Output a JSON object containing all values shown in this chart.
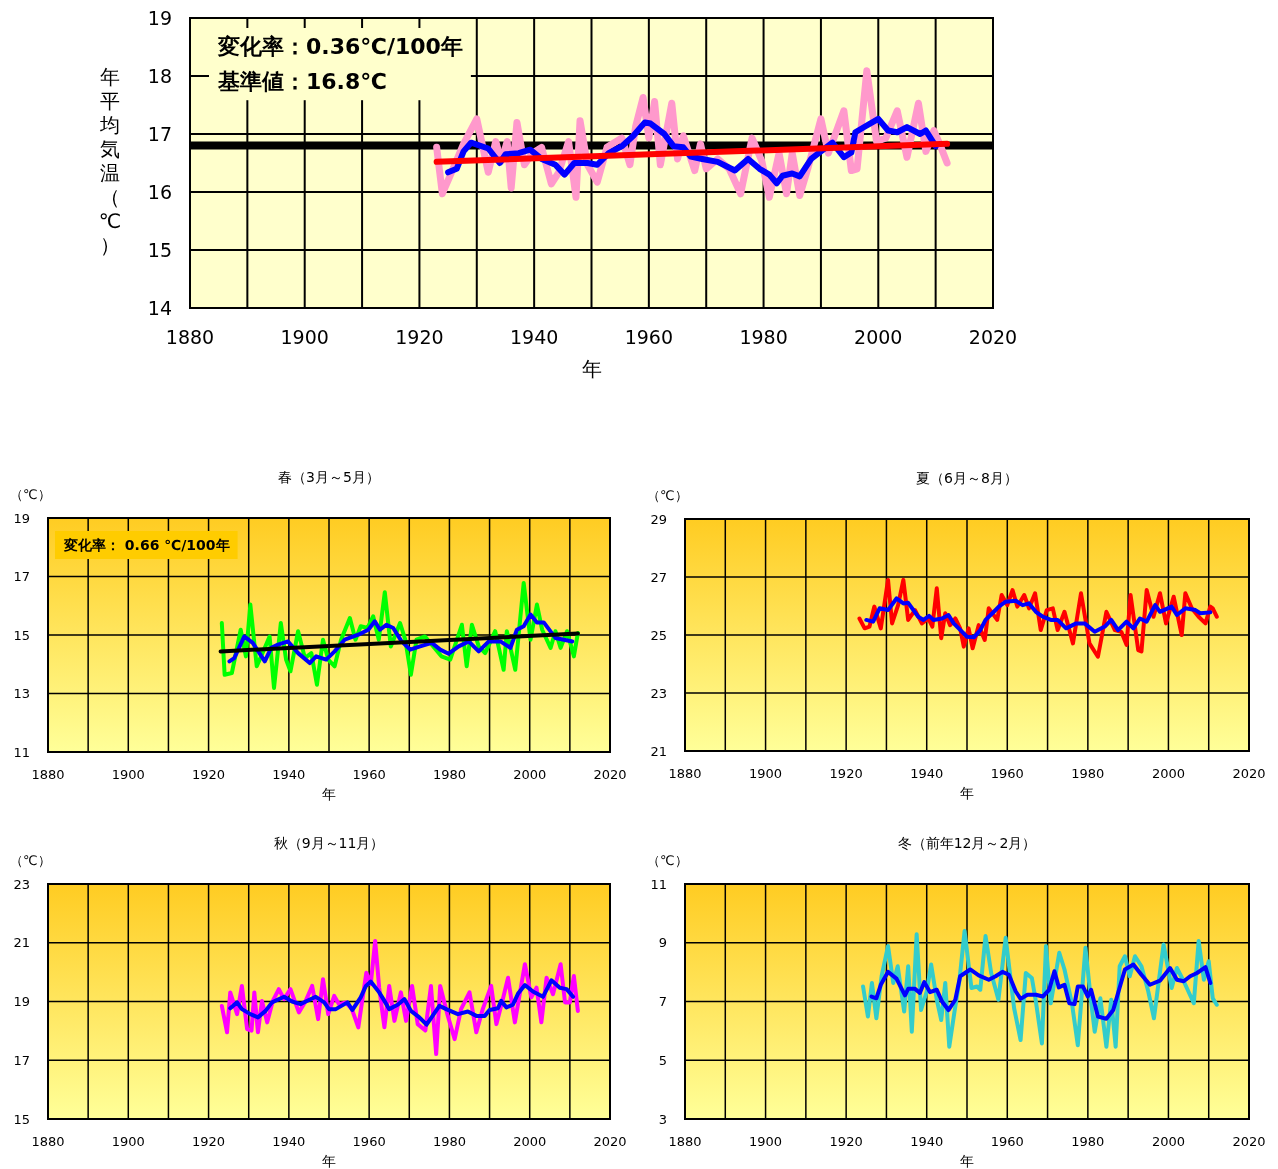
{
  "chart_data": [
    {
      "type": "line",
      "xlabel": "年",
      "ylabel": "年平均気温（℃）",
      "annotations": [
        "変化率：0.36℃/100年",
        "基準値：16.8℃"
      ],
      "xlim": [
        1880,
        2020
      ],
      "ylim": [
        14,
        19
      ],
      "xticks": [
        1880,
        {
          "value": 1890,
          "label": null
        },
        1900,
        {
          "value": 1910,
          "label": null
        },
        1920,
        {
          "value": 1930,
          "label": null
        },
        1940,
        {
          "value": 1950,
          "label": null
        },
        1960,
        {
          "value": 1970,
          "label": null
        },
        1980,
        {
          "value": 1990,
          "label": null
        },
        2000,
        {
          "value": 2010,
          "label": null
        },
        2020
      ],
      "yticks": [
        14,
        15,
        16,
        17,
        18,
        19
      ],
      "grid": true,
      "ref_lines": [
        {
          "axis": "y",
          "value": 16.8,
          "color": "#000000"
        }
      ],
      "series": [
        {
          "color": "#ff99cc",
          "x": [
            1923,
            1924,
            1925.3,
            1927.7,
            1930,
            1932,
            1933.3,
            1934.3,
            1935.3,
            1936,
            1937,
            1938.3,
            1939.7,
            1941.3,
            1943,
            1944.3,
            1946,
            1947.3,
            1948,
            1949.3,
            1951,
            1952.7,
            1955.3,
            1956.7,
            1957.7,
            1959,
            1960,
            1961,
            1962,
            1964,
            1965,
            1966,
            1968,
            1969,
            1970,
            1972,
            1974,
            1976,
            1978,
            1979.7,
            1981,
            1982.7,
            1984,
            1985,
            1986.3,
            1987.7,
            1990,
            1991.3,
            1993,
            1994,
            1995.3,
            1996.3,
            1998,
            1999.7,
            2001.3,
            2003.3,
            2005,
            2007,
            2008.3,
            2009.7,
            2010.7,
            2012
          ],
          "values": [
            16.77,
            15.97,
            16.27,
            16.83,
            17.26,
            16.34,
            16.87,
            16.53,
            16.87,
            16.07,
            17.2,
            16.47,
            16.67,
            16.77,
            16.14,
            16.34,
            16.87,
            15.91,
            17.23,
            16.47,
            16.17,
            16.77,
            16.93,
            16.47,
            17.13,
            17.63,
            16.93,
            17.56,
            16.47,
            17.53,
            16.57,
            16.97,
            16.37,
            16.83,
            16.4,
            16.57,
            16.4,
            15.97,
            16.93,
            16.53,
            15.91,
            16.67,
            15.97,
            16.67,
            15.94,
            16.4,
            17.26,
            16.67,
            17.13,
            17.4,
            16.37,
            16.4,
            18.09,
            16.87,
            16.93,
            17.4,
            16.6,
            17.53,
            16.7,
            17.06,
            16.83,
            16.5
          ]
        },
        {
          "color": "#0000ff",
          "x": [
            1925,
            1926.5,
            1927.7,
            1929,
            1932,
            1934,
            1935,
            1937.3,
            1939.3,
            1941.3,
            1943.7,
            1945.3,
            1947,
            1949.3,
            1951,
            1953,
            1955.3,
            1957.3,
            1959.3,
            1960.3,
            1962.7,
            1964.3,
            1966,
            1967.3,
            1969.3,
            1972,
            1975,
            1977.3,
            1979.3,
            1981,
            1982.3,
            1983.3,
            1985,
            1986.3,
            1988.3,
            1990,
            1992,
            1994,
            1995.3,
            1996,
            1997.7,
            2000,
            2001.7,
            2003.3,
            2005,
            2007.3,
            2008.3,
            2010
          ],
          "values": [
            16.34,
            16.4,
            16.7,
            16.85,
            16.75,
            16.5,
            16.65,
            16.67,
            16.73,
            16.57,
            16.47,
            16.3,
            16.5,
            16.5,
            16.47,
            16.67,
            16.79,
            16.97,
            17.2,
            17.18,
            17.0,
            16.79,
            16.77,
            16.61,
            16.57,
            16.52,
            16.37,
            16.57,
            16.4,
            16.3,
            16.15,
            16.28,
            16.32,
            16.27,
            16.57,
            16.7,
            16.85,
            16.6,
            16.68,
            17.03,
            17.13,
            17.26,
            17.06,
            17.03,
            17.12,
            17.0,
            17.06,
            16.79
          ]
        },
        {
          "color": "#ff0000",
          "x": [
            1923,
            2012
          ],
          "values": [
            16.52,
            16.83
          ]
        }
      ]
    },
    {
      "type": "line",
      "title": "春（3月～5月）",
      "xlabel": "年",
      "ylabel": "（℃）",
      "annotations": [
        "変化率： 0.66 ℃/100年"
      ],
      "xlim": [
        1880,
        2020
      ],
      "ylim": [
        11,
        19
      ],
      "xticks": [
        1880,
        {
          "value": 1890,
          "label": null
        },
        1900,
        {
          "value": 1910,
          "label": null
        },
        1920,
        {
          "value": 1930,
          "label": null
        },
        1940,
        {
          "value": 1950,
          "label": null
        },
        1960,
        {
          "value": 1970,
          "label": null
        },
        1980,
        {
          "value": 1990,
          "label": null
        },
        2000,
        {
          "value": 2010,
          "label": null
        },
        2020
      ],
      "yticks": [
        11,
        13,
        15,
        17,
        19
      ],
      "grid": true,
      "series": [
        {
          "color": "#00ff00",
          "x": [
            1923.3,
            1924,
            1925.8,
            1928,
            1929.3,
            1930.4,
            1932,
            1934,
            1935.2,
            1936.3,
            1938,
            1939.3,
            1940.4,
            1942.3,
            1944,
            1945.6,
            1947,
            1948.5,
            1949.8,
            1951.4,
            1953,
            1955.2,
            1956.6,
            1957.9,
            1959.6,
            1961,
            1962.4,
            1963.9,
            1965.4,
            1967.7,
            1969,
            1970.4,
            1971.8,
            1973.9,
            1975.6,
            1978,
            1980.2,
            1983.1,
            1984.3,
            1985.6,
            1987.3,
            1988.9,
            1991.4,
            1993.5,
            1994.3,
            1996.4,
            1998.5,
            2000.2,
            2001.8,
            2003.1,
            2005.2,
            2006.4,
            2007.7,
            2009.3,
            2011,
            2012
          ],
          "values": [
            15.41,
            13.64,
            13.7,
            15.18,
            14.27,
            16.04,
            13.93,
            14.56,
            14.95,
            13.19,
            15.41,
            14.16,
            13.76,
            15.13,
            14.21,
            14.38,
            13.3,
            14.84,
            14.16,
            13.93,
            14.84,
            15.58,
            14.84,
            15.3,
            15.24,
            15.64,
            14.84,
            16.46,
            14.61,
            15.41,
            14.84,
            13.64,
            14.84,
            14.95,
            14.67,
            14.27,
            14.16,
            15.35,
            13.93,
            15.35,
            14.61,
            14.38,
            15.13,
            13.81,
            15.13,
            13.81,
            16.78,
            14.84,
            16.04,
            15.18,
            14.56,
            15.13,
            14.56,
            15.13,
            14.27,
            15.07
          ]
        },
        {
          "color": "#0000ff",
          "x": [
            1925.2,
            1926.4,
            1928.9,
            1931,
            1934,
            1935.6,
            1937.3,
            1939.8,
            1942.3,
            1945.2,
            1946.8,
            1949.3,
            1951.4,
            1953.9,
            1957.3,
            1959.8,
            1961.4,
            1962.7,
            1964.3,
            1966,
            1968.1,
            1970.2,
            1972.7,
            1975.6,
            1977.7,
            1979.8,
            1982.3,
            1984.8,
            1987.3,
            1989.8,
            1992.7,
            1995.2,
            1996.8,
            1998.5,
            2000.2,
            2001.8,
            2003.5,
            2006.4,
            2010.6
          ],
          "values": [
            14.1,
            14.21,
            14.95,
            14.73,
            14.1,
            14.56,
            14.67,
            14.78,
            14.38,
            14.04,
            14.27,
            14.16,
            14.44,
            14.84,
            15.01,
            15.18,
            15.47,
            15.18,
            15.35,
            15.24,
            14.78,
            14.5,
            14.61,
            14.73,
            14.5,
            14.36,
            14.61,
            14.78,
            14.44,
            14.78,
            14.78,
            14.56,
            15.18,
            15.3,
            15.7,
            15.43,
            15.43,
            14.9,
            14.78
          ]
        },
        {
          "color": "#000000",
          "x": [
            1923,
            2012
          ],
          "values": [
            14.44,
            15.05
          ]
        }
      ]
    },
    {
      "type": "line",
      "title": "夏（6月～8月）",
      "xlabel": "年",
      "ylabel": "（℃）",
      "xlim": [
        1880,
        2020
      ],
      "ylim": [
        21,
        29
      ],
      "xticks": [
        1880,
        {
          "value": 1890,
          "label": null
        },
        1900,
        {
          "value": 1910,
          "label": null
        },
        1920,
        {
          "value": 1930,
          "label": null
        },
        1940,
        {
          "value": 1950,
          "label": null
        },
        1960,
        {
          "value": 1970,
          "label": null
        },
        1980,
        {
          "value": 1990,
          "label": null
        },
        2000,
        {
          "value": 2010,
          "label": null
        },
        2020
      ],
      "yticks": [
        21,
        23,
        25,
        27,
        29
      ],
      "grid": true,
      "series": [
        {
          "color": "#ff0000",
          "x": [
            1923.3,
            1924.6,
            1925.8,
            1927,
            1928.6,
            1930.4,
            1931.4,
            1932.9,
            1934.2,
            1935.4,
            1937.1,
            1938.8,
            1940.4,
            1941.4,
            1942.5,
            1943.6,
            1944.6,
            1945.8,
            1947.1,
            1948.3,
            1949.2,
            1950.4,
            1951.4,
            1952.9,
            1954.4,
            1955.4,
            1957.5,
            1958.6,
            1960,
            1961.3,
            1962.5,
            1964.2,
            1965.4,
            1966.9,
            1968.3,
            1969.8,
            1971.3,
            1972.5,
            1974.2,
            1976.3,
            1978.3,
            1980.4,
            1982.5,
            1984.6,
            1986.7,
            1988.3,
            1989.6,
            1990.6,
            1992.5,
            1993.3,
            1994.6,
            1996.3,
            1997.9,
            1999.4,
            2001.3,
            2003.3,
            2004.2,
            2005.8,
            2007.5,
            2009.2,
            2010.4,
            2011,
            2012
          ],
          "values": [
            25.57,
            25.23,
            25.29,
            25.98,
            25.23,
            26.9,
            25.4,
            26.03,
            26.9,
            25.52,
            25.86,
            25.4,
            25.57,
            25.29,
            26.61,
            24.89,
            25.75,
            25.34,
            25.57,
            25.23,
            24.6,
            25.23,
            24.54,
            25.34,
            24.83,
            25.92,
            25.52,
            26.38,
            26.03,
            26.55,
            25.98,
            26.38,
            25.92,
            26.44,
            25.17,
            25.86,
            25.92,
            25.17,
            25.8,
            24.71,
            26.44,
            24.71,
            24.25,
            25.8,
            25.17,
            25.11,
            24.66,
            26.38,
            24.48,
            24.43,
            26.55,
            25.63,
            26.44,
            25.4,
            26.32,
            25.0,
            26.44,
            25.92,
            25.63,
            25.4,
            25.98,
            25.92,
            25.63
          ]
        },
        {
          "color": "#0000ff",
          "x": [
            1925,
            1926.7,
            1928.3,
            1930.4,
            1932.5,
            1934.2,
            1935.4,
            1937.9,
            1939.2,
            1940.6,
            1941.7,
            1943.8,
            1945.4,
            1946.7,
            1948.8,
            1950,
            1951.7,
            1953.3,
            1954.6,
            1956.3,
            1957.9,
            1959.6,
            1962.1,
            1963.8,
            1965.4,
            1967.1,
            1968.8,
            1970.8,
            1972.5,
            1974.6,
            1977.1,
            1979.2,
            1981.7,
            1984.2,
            1985.8,
            1987.5,
            1989.6,
            1991.3,
            1992.9,
            1994.6,
            1996.7,
            1997.9,
            2000.8,
            2002.1,
            2004.2,
            2006.7,
            2007.9,
            2010.4
          ],
          "values": [
            25.52,
            25.46,
            25.92,
            25.86,
            26.26,
            26.09,
            26.11,
            25.63,
            25.52,
            25.66,
            25.52,
            25.57,
            25.69,
            25.4,
            25.11,
            24.94,
            24.92,
            25.17,
            25.52,
            25.75,
            25.98,
            26.15,
            26.18,
            26.03,
            26.09,
            25.8,
            25.63,
            25.52,
            25.52,
            25.23,
            25.4,
            25.4,
            25.11,
            25.29,
            25.52,
            25.17,
            25.46,
            25.23,
            25.57,
            25.46,
            26.03,
            25.8,
            25.98,
            25.69,
            25.92,
            25.86,
            25.75,
            25.78
          ]
        }
      ]
    },
    {
      "type": "line",
      "title": "秋（9月～11月）",
      "xlabel": "年",
      "ylabel": "（℃）",
      "xlim": [
        1880,
        2020
      ],
      "ylim": [
        15,
        23
      ],
      "xticks": [
        1880,
        {
          "value": 1890,
          "label": null
        },
        1900,
        {
          "value": 1910,
          "label": null
        },
        1920,
        {
          "value": 1930,
          "label": null
        },
        1940,
        {
          "value": 1950,
          "label": null
        },
        1960,
        {
          "value": 1970,
          "label": null
        },
        1980,
        {
          "value": 1990,
          "label": null
        },
        2000,
        {
          "value": 2010,
          "label": null
        },
        2020
      ],
      "yticks": [
        15,
        17,
        19,
        21,
        23
      ],
      "grid": true,
      "series": [
        {
          "color": "#ff00ff",
          "x": [
            1923.3,
            1924.6,
            1925.4,
            1927.1,
            1928.3,
            1929.6,
            1930.7,
            1931.4,
            1932.3,
            1933.3,
            1934.6,
            1936,
            1937.5,
            1938.8,
            1940.4,
            1942.5,
            1944.2,
            1945.8,
            1947.3,
            1948.5,
            1949.8,
            1951.3,
            1952.5,
            1954.2,
            1955.7,
            1957.3,
            1959.3,
            1960.4,
            1961.5,
            1962.5,
            1963.8,
            1965,
            1966.3,
            1967.9,
            1969.2,
            1970.7,
            1972.1,
            1974,
            1975.4,
            1976.7,
            1977.7,
            1979.6,
            1981.3,
            1982.9,
            1985,
            1986.7,
            1988.3,
            1990.4,
            1991.7,
            1993.3,
            1994.6,
            1996.3,
            1998.8,
            2000.4,
            2001.7,
            2002.9,
            2004.2,
            2005.8,
            2007.7,
            2008.8,
            2010,
            2011,
            2012
          ],
          "values": [
            18.85,
            17.95,
            19.31,
            18.57,
            19.53,
            18.06,
            18.01,
            19.31,
            17.95,
            19.02,
            18.29,
            19.02,
            19.42,
            19.08,
            19.42,
            18.63,
            19.02,
            19.53,
            18.4,
            19.76,
            18.57,
            19.19,
            18.91,
            18.97,
            18.74,
            18.12,
            19.98,
            19.59,
            21.06,
            19.47,
            18.12,
            19.53,
            18.34,
            19.31,
            18.34,
            19.53,
            18.23,
            18.01,
            19.53,
            17.21,
            19.53,
            18.51,
            17.72,
            18.74,
            19.31,
            17.95,
            18.74,
            19.53,
            18.23,
            19.08,
            19.81,
            18.29,
            20.27,
            19.14,
            19.47,
            18.29,
            19.81,
            19.25,
            20.27,
            18.97,
            18.97,
            19.87,
            18.68
          ]
        },
        {
          "color": "#0000ff",
          "x": [
            1925.4,
            1927.1,
            1928.3,
            1930.4,
            1932.3,
            1934.2,
            1935.8,
            1938.8,
            1940.8,
            1942.9,
            1945,
            1946.7,
            1948.8,
            1950,
            1951.7,
            1954.6,
            1955.8,
            1957.9,
            1959.2,
            1960.4,
            1962.5,
            1963.8,
            1965,
            1967.1,
            1968.8,
            1970.4,
            1972.5,
            1974.3,
            1975.8,
            1977.5,
            1979.2,
            1982.1,
            1984.6,
            1986.7,
            1988.8,
            1990,
            1992.1,
            1992.9,
            1994.2,
            1995.8,
            1997.1,
            1998.8,
            2000.8,
            2003.3,
            2005.4,
            2007.5,
            2009.2,
            2010.8
          ],
          "values": [
            18.77,
            18.97,
            18.74,
            18.57,
            18.46,
            18.68,
            18.97,
            19.16,
            19.0,
            18.91,
            19.05,
            19.16,
            18.97,
            18.74,
            18.74,
            18.97,
            18.71,
            19.14,
            19.53,
            19.68,
            19.31,
            19.02,
            18.74,
            18.89,
            19.08,
            18.68,
            18.46,
            18.21,
            18.51,
            18.85,
            18.74,
            18.57,
            18.66,
            18.51,
            18.51,
            18.71,
            18.77,
            19.02,
            18.8,
            18.89,
            19.27,
            19.56,
            19.34,
            19.16,
            19.72,
            19.47,
            19.42,
            19.16
          ]
        }
      ]
    },
    {
      "type": "line",
      "title": "冬（前年12月～2月）",
      "xlabel": "年",
      "ylabel": "（℃）",
      "xlim": [
        1880,
        2020
      ],
      "ylim": [
        3,
        11
      ],
      "xticks": [
        1880,
        {
          "value": 1890,
          "label": null
        },
        1900,
        {
          "value": 1910,
          "label": null
        },
        1920,
        {
          "value": 1930,
          "label": null
        },
        1940,
        {
          "value": 1950,
          "label": null
        },
        1960,
        {
          "value": 1970,
          "label": null
        },
        1980,
        {
          "value": 1990,
          "label": null
        },
        2000,
        {
          "value": 2010,
          "label": null
        },
        2020
      ],
      "yticks": [
        3,
        5,
        7,
        9,
        11
      ],
      "grid": true,
      "series": [
        {
          "color": "#33cccc",
          "x": [
            1924.2,
            1925.4,
            1926.4,
            1927.5,
            1928.8,
            1930.4,
            1931.7,
            1932.8,
            1934.4,
            1935.4,
            1936.3,
            1937.5,
            1938.6,
            1940,
            1941.1,
            1942.5,
            1943.6,
            1944.6,
            1945.6,
            1946.9,
            1948.1,
            1949.4,
            1951.1,
            1952.5,
            1953.3,
            1954.6,
            1956,
            1957.8,
            1959.6,
            1961.7,
            1963.3,
            1964.6,
            1966.1,
            1967.1,
            1968.6,
            1969.6,
            1970.8,
            1972.9,
            1974.2,
            1976.1,
            1977.5,
            1979.4,
            1980.8,
            1981.7,
            1983.1,
            1984.6,
            1985.8,
            1986.9,
            1987.9,
            1989.2,
            1990.4,
            1991.7,
            1993.3,
            1995,
            1996.4,
            1998.8,
            2000.8,
            2002.1,
            2003.8,
            2006.3,
            2007.5,
            2008.8,
            2010,
            2011,
            2012
          ],
          "values": [
            7.51,
            6.49,
            7.63,
            6.43,
            7.86,
            8.89,
            7.63,
            8.2,
            6.66,
            8.2,
            5.97,
            9.29,
            6.71,
            7.34,
            8.26,
            7.06,
            6.37,
            7.63,
            5.46,
            6.66,
            7.69,
            9.4,
            7.46,
            7.51,
            7.4,
            9.23,
            7.97,
            7.06,
            9.17,
            6.77,
            5.69,
            7.97,
            7.8,
            7.0,
            5.57,
            8.89,
            6.94,
            8.66,
            8.09,
            6.89,
            5.51,
            8.83,
            7.0,
            5.97,
            7.11,
            5.46,
            7.06,
            5.46,
            8.2,
            8.54,
            7.86,
            8.54,
            8.2,
            7.34,
            6.43,
            8.94,
            7.46,
            8.14,
            7.69,
            6.94,
            9.06,
            7.74,
            8.37,
            7.11,
            6.89
          ]
        },
        {
          "color": "#0000ff",
          "x": [
            1926.3,
            1927.5,
            1928.6,
            1930.4,
            1932.5,
            1934.6,
            1935.4,
            1937.1,
            1938.3,
            1939.4,
            1940.8,
            1942.5,
            1943.8,
            1945.4,
            1947.1,
            1948.3,
            1950.8,
            1952.9,
            1955.4,
            1957.1,
            1958.8,
            1960.4,
            1962.1,
            1963.3,
            1965,
            1967.1,
            1968.8,
            1970.4,
            1971.7,
            1972.8,
            1974.2,
            1975.4,
            1976.7,
            1977.5,
            1978.8,
            1980,
            1980.8,
            1982.5,
            1984.6,
            1986.3,
            1987.5,
            1989.2,
            1991.3,
            1993.3,
            1995.4,
            1997.9,
            2000.4,
            2002.1,
            2003.8,
            2005.4,
            2007.1,
            2009.2,
            2010.4
          ],
          "values": [
            7.17,
            7.11,
            7.57,
            8.01,
            7.78,
            7.21,
            7.43,
            7.43,
            7.29,
            7.66,
            7.32,
            7.4,
            7.0,
            6.71,
            7.06,
            7.86,
            8.09,
            7.89,
            7.74,
            7.86,
            8.01,
            7.91,
            7.34,
            7.09,
            7.23,
            7.23,
            7.17,
            7.4,
            8.03,
            7.48,
            7.57,
            6.94,
            6.91,
            7.51,
            7.51,
            7.17,
            7.4,
            6.49,
            6.41,
            6.71,
            7.29,
            8.09,
            8.26,
            7.91,
            7.57,
            7.71,
            8.14,
            7.74,
            7.69,
            7.86,
            7.97,
            8.17,
            7.63
          ]
        }
      ]
    }
  ]
}
